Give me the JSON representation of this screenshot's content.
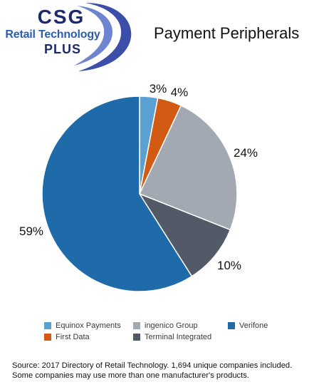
{
  "logo": {
    "line1": "CSG",
    "line2": "Retail Technology",
    "line3": "PLUS",
    "colors": {
      "text_dark": "#1c2a6b",
      "text_blue": "#2b5cae",
      "swoosh": "#3c4fa8"
    }
  },
  "header": {
    "title": "Payment Peripherals"
  },
  "chart_data": {
    "type": "pie",
    "title": "Payment Peripherals",
    "start_angle_deg": 0,
    "direction": "clockwise",
    "slices": [
      {
        "name": "Equinox Payments",
        "value": 3,
        "label": "3%",
        "color": "#5aa0d2"
      },
      {
        "name": "First Data",
        "value": 4,
        "label": "4%",
        "color": "#d35a12"
      },
      {
        "name": "ingenico Group",
        "value": 24,
        "label": "24%",
        "color": "#a3a9b2"
      },
      {
        "name": "Terminal Integrated",
        "value": 10,
        "label": "10%",
        "color": "#525a67"
      },
      {
        "name": "Verifone",
        "value": 59,
        "label": "59%",
        "color": "#1f6aa8"
      }
    ],
    "legend_order": [
      "Equinox Payments",
      "ingenico Group",
      "Verifone",
      "First Data",
      "Terminal Integrated"
    ],
    "legend_placement": "bottom"
  },
  "footer": {
    "source_line1": "Source: 2017 Directory of Retail Technology. 1,694 unique companies included.",
    "source_line2": "Some companies may use more than one manufacturer's products."
  }
}
